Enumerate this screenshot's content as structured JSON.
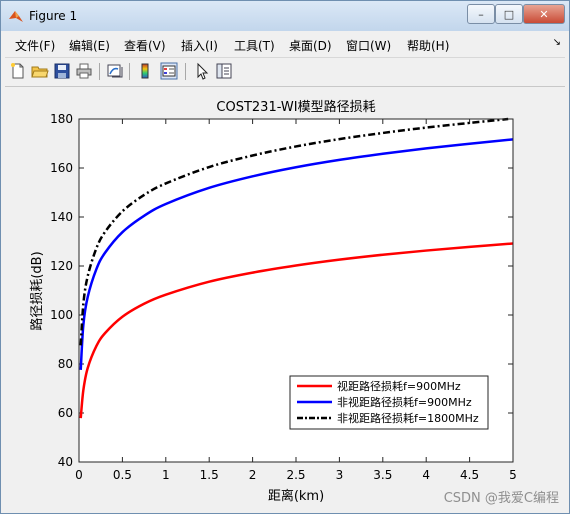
{
  "window": {
    "title": "Figure 1",
    "minimize_symbol": "–",
    "maximize_symbol": "□",
    "close_symbol": "✕"
  },
  "menu": {
    "items": [
      {
        "label": "文件(F)"
      },
      {
        "label": "编辑(E)"
      },
      {
        "label": "查看(V)"
      },
      {
        "label": "插入(I)"
      },
      {
        "label": "工具(T)"
      },
      {
        "label": "桌面(D)"
      },
      {
        "label": "窗口(W)"
      },
      {
        "label": "帮助(H)"
      }
    ],
    "overflow_symbol": "↘"
  },
  "toolbar": {
    "icons": [
      "new-file-icon",
      "open-folder-icon",
      "save-icon",
      "print-icon",
      "link-plot-icon",
      "colorbar-icon",
      "legend-icon",
      "pointer-icon",
      "property-editor-icon"
    ]
  },
  "watermark": "CSDN @我爱C编程",
  "colors": {
    "series1": "#ff0000",
    "series2": "#0000ff",
    "series3": "#000000",
    "axes_bg": "#ffffff",
    "figure_bg": "#f0f0f0"
  },
  "chart_data": {
    "type": "line",
    "title": "COST231-WI模型路径损耗",
    "xlabel": "距离(km)",
    "ylabel": "路径损耗(dB)",
    "xlim": [
      0,
      5
    ],
    "ylim": [
      40,
      180
    ],
    "xticks": [
      "0",
      "0.5",
      "1",
      "1.5",
      "2",
      "2.5",
      "3",
      "3.5",
      "4",
      "4.5",
      "5"
    ],
    "yticks": [
      "40",
      "60",
      "80",
      "100",
      "120",
      "140",
      "160",
      "180"
    ],
    "grid": false,
    "legend_position": "bottom-right",
    "series": [
      {
        "name": "视距路径损耗f=900MHz",
        "style": "solid",
        "color": "#ff0000",
        "x": [
          0.02,
          0.05,
          0.1,
          0.2,
          0.3,
          0.5,
          0.75,
          1.0,
          1.5,
          2.0,
          2.5,
          3.0,
          3.5,
          4.0,
          4.5,
          5.0
        ],
        "y": [
          57.9,
          69.3,
          78.3,
          87.3,
          92.6,
          99.3,
          104.6,
          108.3,
          113.6,
          117.3,
          120.2,
          122.6,
          124.6,
          126.3,
          127.8,
          129.2
        ]
      },
      {
        "name": "非视距路径损耗f=900MHz",
        "style": "solid",
        "color": "#0000ff",
        "x": [
          0.02,
          0.05,
          0.1,
          0.2,
          0.3,
          0.5,
          0.75,
          1.0,
          1.5,
          2.0,
          2.5,
          3.0,
          3.5,
          4.0,
          4.5,
          5.0
        ],
        "y": [
          77.6,
          95.9,
          107.3,
          118.7,
          125.4,
          133.8,
          140.5,
          145.3,
          151.9,
          156.6,
          160.3,
          163.3,
          165.8,
          168.0,
          169.9,
          171.7
        ]
      },
      {
        "name": "非视距路径损耗f=1800MHz",
        "style": "dashdot",
        "color": "#000000",
        "x": [
          0.02,
          0.05,
          0.1,
          0.2,
          0.3,
          0.5,
          0.75,
          1.0,
          1.5,
          2.0,
          2.5,
          3.0,
          3.5,
          4.0,
          4.5,
          5.0
        ],
        "y": [
          87.6,
          104.5,
          115.8,
          127.2,
          133.9,
          142.3,
          149.0,
          153.7,
          160.4,
          165.1,
          168.8,
          171.8,
          174.3,
          176.5,
          178.4,
          180.2
        ]
      }
    ]
  }
}
